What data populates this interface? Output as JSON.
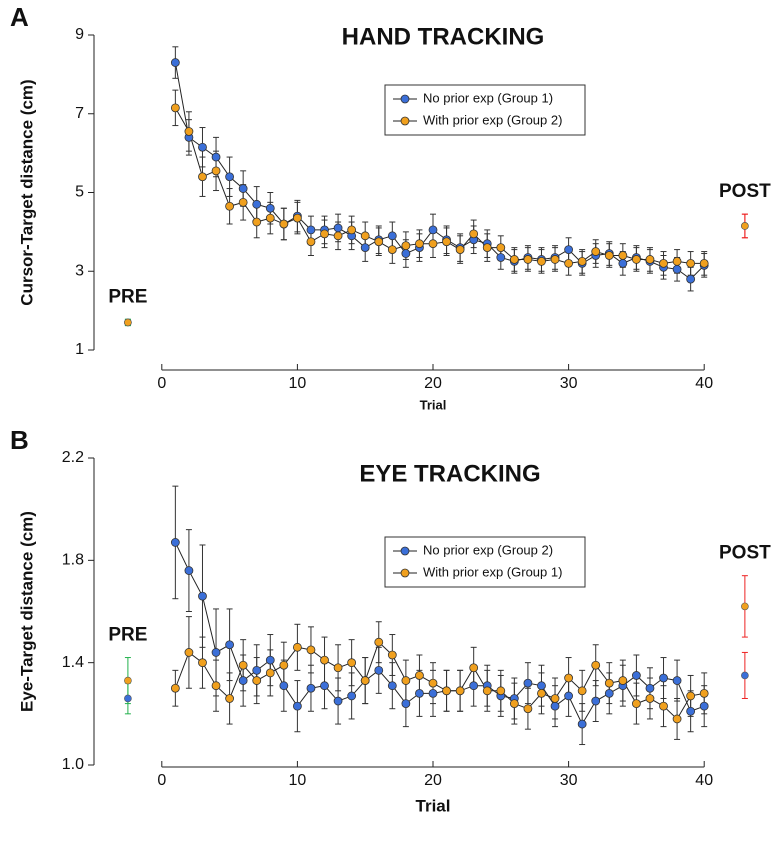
{
  "chart_data": [
    {
      "type": "line",
      "panel_label": "A",
      "title": "HAND TRACKING",
      "y_label": "Cursor-Target distance (cm)",
      "x_label": "Trial",
      "x": [
        1,
        2,
        3,
        4,
        5,
        6,
        7,
        8,
        9,
        10,
        11,
        12,
        13,
        14,
        15,
        16,
        17,
        18,
        19,
        20,
        21,
        22,
        23,
        24,
        25,
        26,
        27,
        28,
        29,
        30,
        31,
        32,
        33,
        34,
        35,
        36,
        37,
        38,
        39,
        40
      ],
      "xlim": [
        -5,
        45
      ],
      "xticks": [
        0,
        10,
        20,
        30,
        40
      ],
      "ylim": [
        1,
        9
      ],
      "yticks": [
        1,
        3,
        5,
        7,
        9
      ],
      "legend": "upper center",
      "series": [
        {
          "name": "No prior exp (Group 1)",
          "color": "#3b6fd8",
          "values": [
            8.3,
            6.4,
            6.15,
            5.9,
            5.4,
            5.1,
            4.7,
            4.6,
            4.2,
            4.4,
            4.05,
            4.05,
            4.1,
            3.9,
            3.6,
            3.8,
            3.9,
            3.45,
            3.6,
            4.05,
            3.8,
            3.6,
            3.8,
            3.7,
            3.35,
            3.25,
            3.35,
            3.3,
            3.35,
            3.55,
            3.2,
            3.4,
            3.45,
            3.2,
            3.35,
            3.25,
            3.1,
            3.05,
            2.8,
            3.15
          ],
          "errors": [
            0.4,
            0.45,
            0.5,
            0.5,
            0.5,
            0.45,
            0.45,
            0.4,
            0.4,
            0.4,
            0.35,
            0.35,
            0.35,
            0.35,
            0.35,
            0.35,
            0.35,
            0.35,
            0.35,
            0.4,
            0.35,
            0.35,
            0.35,
            0.35,
            0.3,
            0.3,
            0.3,
            0.3,
            0.3,
            0.3,
            0.3,
            0.3,
            0.3,
            0.3,
            0.3,
            0.3,
            0.3,
            0.3,
            0.3,
            0.3
          ]
        },
        {
          "name": "With prior exp (Group 2)",
          "color": "#f0a01e",
          "values": [
            7.15,
            6.55,
            5.4,
            5.55,
            4.65,
            4.75,
            4.25,
            4.35,
            4.2,
            4.35,
            3.75,
            3.95,
            3.9,
            4.05,
            3.9,
            3.75,
            3.55,
            3.65,
            3.7,
            3.7,
            3.75,
            3.55,
            3.95,
            3.6,
            3.6,
            3.3,
            3.3,
            3.25,
            3.3,
            3.2,
            3.25,
            3.5,
            3.4,
            3.4,
            3.3,
            3.3,
            3.2,
            3.25,
            3.2,
            3.2
          ],
          "errors": [
            0.45,
            0.5,
            0.5,
            0.5,
            0.45,
            0.45,
            0.4,
            0.4,
            0.4,
            0.4,
            0.35,
            0.35,
            0.35,
            0.35,
            0.35,
            0.35,
            0.35,
            0.35,
            0.35,
            0.35,
            0.35,
            0.35,
            0.35,
            0.35,
            0.3,
            0.3,
            0.3,
            0.3,
            0.3,
            0.3,
            0.3,
            0.3,
            0.3,
            0.3,
            0.3,
            0.3,
            0.3,
            0.3,
            0.3,
            0.3
          ]
        }
      ],
      "annotations": [
        {
          "text": "PRE",
          "color": "#22b14c",
          "x": -2.5,
          "values": [
            1.7,
            1.7
          ],
          "errors": [
            0.08,
            0.08
          ]
        },
        {
          "text": "POST",
          "color": "#ee2222",
          "x": 43,
          "values": [
            4.15,
            4.15
          ],
          "errors": [
            0.3,
            0.3
          ]
        }
      ]
    },
    {
      "type": "line",
      "panel_label": "B",
      "title": "EYE TRACKING",
      "y_label": "Eye-Target distance (cm)",
      "x_label": "Trial",
      "x": [
        1,
        2,
        3,
        4,
        5,
        6,
        7,
        8,
        9,
        10,
        11,
        12,
        13,
        14,
        15,
        16,
        17,
        18,
        19,
        20,
        21,
        22,
        23,
        24,
        25,
        26,
        27,
        28,
        29,
        30,
        31,
        32,
        33,
        34,
        35,
        36,
        37,
        38,
        39,
        40
      ],
      "xlim": [
        -5,
        45
      ],
      "xticks": [
        0,
        10,
        20,
        30,
        40
      ],
      "ylim": [
        1.0,
        2.2
      ],
      "yticks": [
        {
          "value": 1.0,
          "label": "1.0"
        },
        1.4,
        1.8,
        2.2
      ],
      "legend": "upper center",
      "series": [
        {
          "name": "No prior exp (Group 2)",
          "color": "#3b6fd8",
          "values": [
            1.87,
            1.76,
            1.66,
            1.44,
            1.47,
            1.33,
            1.37,
            1.41,
            1.31,
            1.23,
            1.3,
            1.31,
            1.25,
            1.27,
            1.33,
            1.37,
            1.31,
            1.24,
            1.28,
            1.28,
            1.29,
            1.29,
            1.31,
            1.31,
            1.27,
            1.26,
            1.32,
            1.31,
            1.23,
            1.27,
            1.16,
            1.25,
            1.28,
            1.31,
            1.35,
            1.3,
            1.34,
            1.33,
            1.21,
            1.23
          ],
          "errors": [
            0.22,
            0.16,
            0.2,
            0.17,
            0.14,
            0.1,
            0.1,
            0.1,
            0.1,
            0.1,
            0.09,
            0.09,
            0.09,
            0.09,
            0.09,
            0.09,
            0.09,
            0.09,
            0.09,
            0.09,
            0.08,
            0.08,
            0.08,
            0.08,
            0.08,
            0.08,
            0.08,
            0.08,
            0.08,
            0.08,
            0.08,
            0.08,
            0.08,
            0.08,
            0.08,
            0.08,
            0.08,
            0.08,
            0.08,
            0.08
          ]
        },
        {
          "name": "With prior exp (Group 1)",
          "color": "#f0a01e",
          "values": [
            1.3,
            1.44,
            1.4,
            1.31,
            1.26,
            1.39,
            1.33,
            1.36,
            1.39,
            1.46,
            1.45,
            1.41,
            1.38,
            1.4,
            1.33,
            1.48,
            1.43,
            1.33,
            1.35,
            1.32,
            1.29,
            1.29,
            1.38,
            1.29,
            1.29,
            1.24,
            1.22,
            1.28,
            1.26,
            1.34,
            1.29,
            1.39,
            1.32,
            1.33,
            1.24,
            1.26,
            1.23,
            1.18,
            1.27,
            1.28
          ],
          "errors": [
            0.07,
            0.14,
            0.1,
            0.1,
            0.1,
            0.1,
            0.09,
            0.09,
            0.09,
            0.09,
            0.09,
            0.09,
            0.09,
            0.09,
            0.09,
            0.08,
            0.08,
            0.08,
            0.08,
            0.08,
            0.08,
            0.08,
            0.08,
            0.08,
            0.08,
            0.08,
            0.08,
            0.08,
            0.08,
            0.08,
            0.08,
            0.08,
            0.08,
            0.08,
            0.08,
            0.08,
            0.08,
            0.08,
            0.08,
            0.08
          ]
        }
      ],
      "annotations": [
        {
          "text": "PRE",
          "color": "#22b14c",
          "x": -2.5,
          "values": [
            1.26,
            1.33
          ],
          "errors": [
            0.06,
            0.09
          ]
        },
        {
          "text": "POST",
          "color": "#ee2222",
          "x": 43,
          "values": [
            1.35,
            1.62
          ],
          "errors": [
            0.09,
            0.12
          ]
        }
      ]
    }
  ]
}
